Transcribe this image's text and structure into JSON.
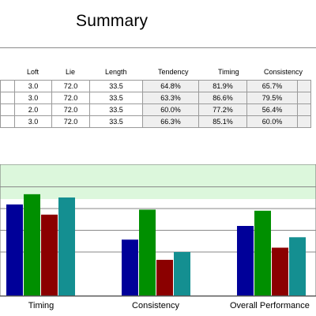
{
  "summary": {
    "title": "Summary"
  },
  "table": {
    "headers": [
      "Loft",
      "Lie",
      "Length",
      "Tendency",
      "Timing",
      "Consistency"
    ],
    "rows": [
      [
        "3.0",
        "72.0",
        "33.5",
        "64.8%",
        "81.9%",
        "65.7%"
      ],
      [
        "3.0",
        "72.0",
        "33.5",
        "63.3%",
        "86.6%",
        "79.5%"
      ],
      [
        "2.0",
        "72.0",
        "33.5",
        "60.0%",
        "77.2%",
        "56.4%"
      ],
      [
        "3.0",
        "72.0",
        "33.5",
        "66.3%",
        "85.1%",
        "60.0%"
      ]
    ]
  },
  "chart_data": {
    "type": "bar",
    "categories": [
      "Timing",
      "Consistency",
      "Overall Performance"
    ],
    "series": [
      {
        "values": [
          81.9,
          65.7,
          72.0
        ],
        "color": "#000099"
      },
      {
        "values": [
          86.6,
          79.5,
          79.0
        ],
        "color": "#008f00"
      },
      {
        "values": [
          77.2,
          56.4,
          62.0
        ],
        "color": "#8b0000"
      },
      {
        "values": [
          85.1,
          60.0,
          66.8
        ],
        "color": "#148f91"
      }
    ],
    "ylim": [
      40,
      100
    ],
    "grid": true,
    "legend": "none",
    "background_band": "#dcf7dc"
  }
}
